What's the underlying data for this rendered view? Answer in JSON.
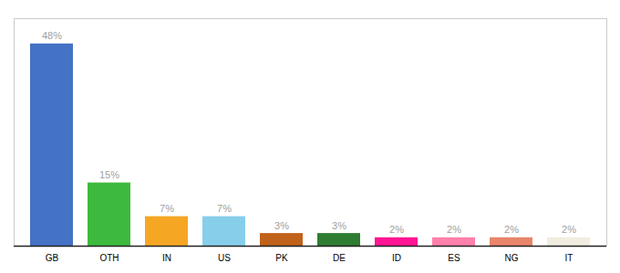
{
  "chart_data": {
    "type": "bar",
    "categories": [
      "GB",
      "OTH",
      "IN",
      "US",
      "PK",
      "DE",
      "ID",
      "ES",
      "NG",
      "IT"
    ],
    "values": [
      48,
      15,
      7,
      7,
      3,
      3,
      2,
      2,
      2,
      2
    ],
    "value_labels": [
      "48%",
      "15%",
      "7%",
      "7%",
      "3%",
      "3%",
      "2%",
      "2%",
      "2%",
      "2%"
    ],
    "colors": [
      "#4472c4",
      "#3dba3d",
      "#f5a623",
      "#87ceeb",
      "#c0621a",
      "#2e7d32",
      "#ff1493",
      "#ff80ab",
      "#e8856a",
      "#f0ede0"
    ],
    "data_labels": true,
    "ylim": [
      0,
      54
    ],
    "tick_labels": "x",
    "grid": false
  }
}
